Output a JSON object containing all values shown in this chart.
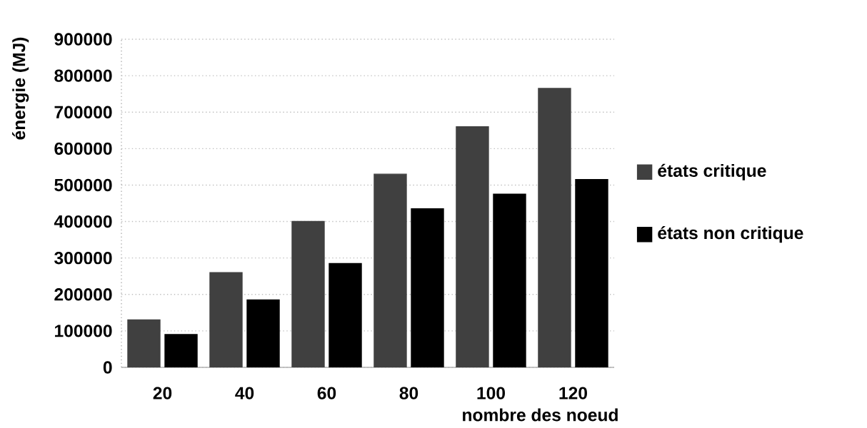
{
  "chart_data": {
    "type": "bar",
    "xlabel": "nombre des noeud",
    "ylabel": "énergie (MJ)",
    "categories": [
      "20",
      "40",
      "60",
      "80",
      "100",
      "120"
    ],
    "series": [
      {
        "name": "états critique",
        "color": "#404040",
        "values": [
          130000,
          260000,
          400000,
          530000,
          660000,
          765000
        ]
      },
      {
        "name": "états non critique",
        "color": "#000000",
        "values": [
          90000,
          185000,
          285000,
          435000,
          475000,
          515000
        ]
      }
    ],
    "ylim": [
      0,
      900000
    ],
    "yticks": [
      0,
      100000,
      200000,
      300000,
      400000,
      500000,
      600000,
      700000,
      800000,
      900000
    ],
    "grid": "y",
    "legend": "right"
  }
}
